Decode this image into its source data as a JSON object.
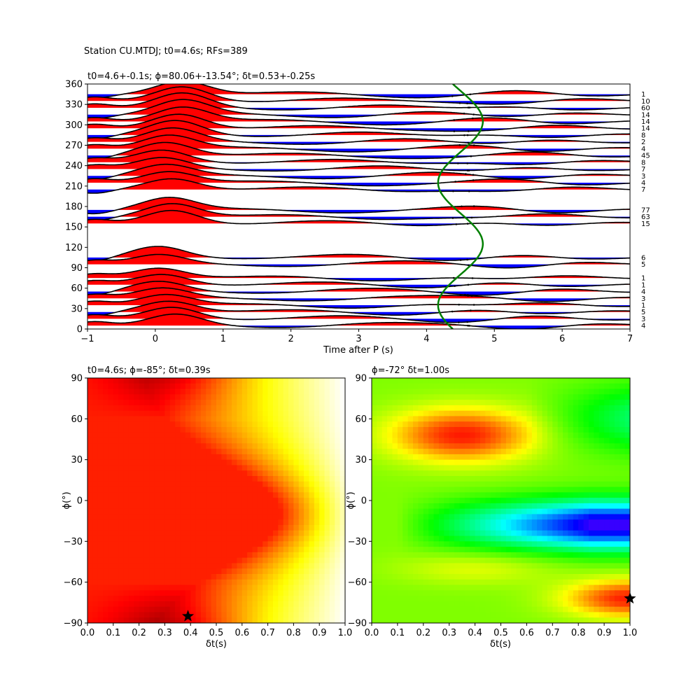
{
  "figure": {
    "suptitle": "Station CU.MTDJ; t0=4.6s; RFs=389"
  },
  "chart_data": [
    {
      "type": "line",
      "title": "t0=4.6+-0.1s; ϕ=80.06+-13.54°; δt=0.53+-0.25s",
      "xlabel": "Time after P (s)",
      "ylabel": "",
      "xlim": [
        -1,
        7
      ],
      "ylim": [
        0,
        360
      ],
      "xticks": [
        -1,
        0,
        1,
        2,
        3,
        4,
        5,
        6,
        7
      ],
      "yticks": [
        0,
        30,
        60,
        90,
        120,
        150,
        180,
        210,
        240,
        270,
        300,
        330,
        360
      ],
      "fill_colors": {
        "positive": "#ff0000",
        "negative": "#0000ff",
        "line": "#000000",
        "curve": "#008000"
      },
      "traces": [
        {
          "baz": 5,
          "count": "4",
          "peak_t": 0.3,
          "amp": 1.0
        },
        {
          "baz": 15,
          "count": "3",
          "peak_t": 0.25,
          "amp": 1.05
        },
        {
          "baz": 25,
          "count": "5",
          "peak_t": 0.2,
          "amp": 1.0
        },
        {
          "baz": 35,
          "count": "1",
          "peak_t": 0.15,
          "amp": 0.95
        },
        {
          "baz": 45,
          "count": "3",
          "peak_t": 0.1,
          "amp": 0.9
        },
        {
          "baz": 55,
          "count": "4",
          "peak_t": 0.05,
          "amp": 0.9
        },
        {
          "baz": 65,
          "count": "1",
          "peak_t": 0.1,
          "amp": 0.95
        },
        {
          "baz": 75,
          "count": "1",
          "peak_t": 0.05,
          "amp": 0.9
        },
        {
          "baz": 95,
          "count": "5",
          "peak_t": 0.05,
          "amp": 0.85
        },
        {
          "baz": 105,
          "count": "6",
          "peak_t": 0.05,
          "amp": 1.0
        },
        {
          "baz": 155,
          "count": "15",
          "peak_t": 0.25,
          "amp": 1.2
        },
        {
          "baz": 165,
          "count": "63",
          "peak_t": 0.25,
          "amp": 1.2
        },
        {
          "baz": 175,
          "count": "77",
          "peak_t": 0.2,
          "amp": 1.1
        },
        {
          "baz": 205,
          "count": "7",
          "peak_t": 0.25,
          "amp": 1.0
        },
        {
          "baz": 215,
          "count": "4",
          "peak_t": 0.2,
          "amp": 1.0
        },
        {
          "baz": 225,
          "count": "3",
          "peak_t": 0.15,
          "amp": 1.0
        },
        {
          "baz": 235,
          "count": "7",
          "peak_t": 0.1,
          "amp": 1.0
        },
        {
          "baz": 245,
          "count": "8",
          "peak_t": 0.1,
          "amp": 1.1
        },
        {
          "baz": 255,
          "count": "45",
          "peak_t": 0.15,
          "amp": 1.2
        },
        {
          "baz": 265,
          "count": "4",
          "peak_t": 0.2,
          "amp": 1.2
        },
        {
          "baz": 275,
          "count": "2",
          "peak_t": 0.25,
          "amp": 1.2
        },
        {
          "baz": 285,
          "count": "8",
          "peak_t": 0.3,
          "amp": 1.3
        },
        {
          "baz": 295,
          "count": "14",
          "peak_t": 0.35,
          "amp": 1.3
        },
        {
          "baz": 305,
          "count": "14",
          "peak_t": 0.4,
          "amp": 1.3
        },
        {
          "baz": 315,
          "count": "14",
          "peak_t": 0.4,
          "amp": 1.3
        },
        {
          "baz": 325,
          "count": "60",
          "peak_t": 0.4,
          "amp": 1.3
        },
        {
          "baz": 335,
          "count": "10",
          "peak_t": 0.4,
          "amp": 1.3
        },
        {
          "baz": 345,
          "count": "1",
          "peak_t": 0.4,
          "amp": 1.2
        }
      ],
      "t0_curve": {
        "t_center": 4.5,
        "amplitude": 0.33,
        "period_deg": 180,
        "phase_deg": 80
      }
    },
    {
      "type": "heatmap",
      "title": "t0=4.6s; ϕ=-85°; δt=0.39s",
      "xlabel": "δt(s)",
      "ylabel": "ϕ(°)",
      "xlim": [
        0.0,
        1.0
      ],
      "ylim": [
        -90,
        90
      ],
      "xticks": [
        0.0,
        0.1,
        0.2,
        0.3,
        0.4,
        0.5,
        0.6,
        0.7,
        0.8,
        0.9,
        1.0
      ],
      "yticks": [
        -90,
        -60,
        -30,
        0,
        30,
        60,
        90
      ],
      "colormap": "hot",
      "best": {
        "dt": 0.39,
        "phi": -85
      }
    },
    {
      "type": "heatmap",
      "title": "ϕ=-72° δt=1.00s",
      "xlabel": "δt(s)",
      "ylabel": "ϕ(°)",
      "xlim": [
        0.0,
        1.0
      ],
      "ylim": [
        -90,
        90
      ],
      "xticks": [
        0.0,
        0.1,
        0.2,
        0.3,
        0.4,
        0.5,
        0.6,
        0.7,
        0.8,
        0.9,
        1.0
      ],
      "yticks": [
        -90,
        -60,
        -30,
        0,
        30,
        60,
        90
      ],
      "colormap": "hsv",
      "best": {
        "dt": 1.0,
        "phi": -72
      }
    }
  ]
}
